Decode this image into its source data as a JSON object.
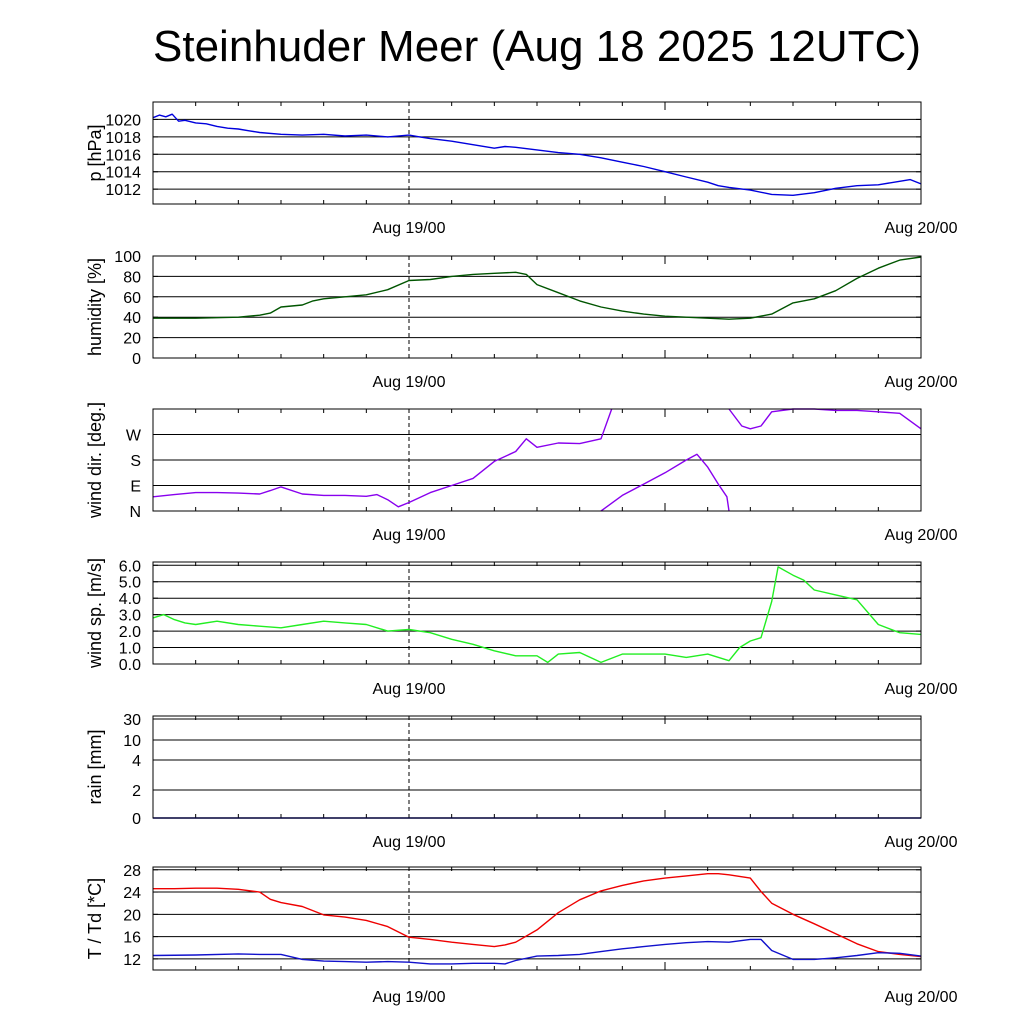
{
  "title": "Steinhuder Meer (Aug 18 2025 12UTC)",
  "time_axis": {
    "labels": [
      "Aug 19/00",
      "Aug 20/00"
    ],
    "label_hours": [
      12,
      36
    ]
  },
  "chart_data": [
    {
      "type": "line",
      "id": "pressure",
      "ylabel": "p [hPa]",
      "ylim": [
        1010.3,
        1022.0
      ],
      "yticks": [
        1012,
        1014,
        1016,
        1018,
        1020
      ],
      "ytick_labels": [
        "1012",
        "1014",
        "1016",
        "1018",
        "1020"
      ],
      "xlim": [
        0,
        36
      ],
      "series": [
        {
          "color": "#0000dd",
          "x": [
            0,
            0.3,
            0.6,
            0.9,
            1.2,
            1.5,
            2,
            2.5,
            3,
            3.5,
            4,
            4.5,
            5,
            6,
            7,
            8,
            9,
            10,
            11,
            12,
            12.5,
            13,
            14,
            15,
            16,
            16.5,
            17,
            18,
            19,
            20,
            21,
            22,
            23,
            24,
            25,
            26,
            26.5,
            27,
            28,
            29,
            30,
            31,
            32,
            33,
            34,
            35,
            35.5,
            36
          ],
          "y": [
            1020.2,
            1020.5,
            1020.3,
            1020.6,
            1019.8,
            1019.9,
            1019.6,
            1019.5,
            1019.2,
            1019.0,
            1018.9,
            1018.7,
            1018.5,
            1018.3,
            1018.2,
            1018.3,
            1018.1,
            1018.2,
            1018.0,
            1018.2,
            1018.0,
            1017.8,
            1017.5,
            1017.1,
            1016.7,
            1016.9,
            1016.8,
            1016.5,
            1016.2,
            1016.0,
            1015.6,
            1015.1,
            1014.6,
            1014.0,
            1013.4,
            1012.8,
            1012.4,
            1012.2,
            1011.9,
            1011.4,
            1011.3,
            1011.6,
            1012.1,
            1012.4,
            1012.5,
            1012.9,
            1013.1,
            1012.6
          ]
        }
      ]
    },
    {
      "type": "line",
      "id": "humidity",
      "ylabel": "humidity [%]",
      "ylim": [
        0,
        100
      ],
      "yticks": [
        0,
        20,
        40,
        60,
        80,
        100
      ],
      "ytick_labels": [
        "0",
        "20",
        "40",
        "60",
        "80",
        "100"
      ],
      "xlim": [
        0,
        36
      ],
      "series": [
        {
          "color": "#005500",
          "x": [
            0,
            2,
            4,
            5,
            5.5,
            6,
            7,
            7.5,
            8,
            9,
            10,
            11,
            12,
            13,
            14,
            15,
            16,
            17,
            17.5,
            18,
            19,
            20,
            21,
            22,
            23,
            24,
            25,
            26,
            27,
            28,
            29,
            30,
            31,
            32,
            33,
            34,
            35,
            36
          ],
          "y": [
            39,
            39,
            40,
            42,
            44,
            50,
            52,
            56,
            58,
            60,
            62,
            67,
            76,
            77,
            80,
            82,
            83,
            84,
            82,
            72,
            64,
            56,
            50,
            46,
            43,
            41,
            40,
            39,
            38,
            39,
            43,
            54,
            58,
            66,
            78,
            88,
            96,
            99
          ]
        }
      ]
    },
    {
      "type": "line",
      "id": "wind_direction",
      "ylabel": "wind dir. [deg.]",
      "ylim": [
        0,
        360
      ],
      "yticks": [
        0,
        90,
        180,
        270
      ],
      "ytick_labels": [
        "N",
        "E",
        "S",
        "W"
      ],
      "xlim": [
        0,
        36
      ],
      "series": [
        {
          "color": "#8800ee",
          "x": [
            0,
            1,
            2,
            3,
            4,
            5,
            5.5,
            6,
            7,
            8,
            9,
            10,
            10.5,
            11,
            11.5,
            12,
            13,
            14,
            15,
            16,
            17,
            17.5,
            18,
            19,
            20,
            21,
            21.5
          ],
          "y": [
            50,
            58,
            65,
            65,
            63,
            60,
            72,
            85,
            60,
            55,
            55,
            52,
            58,
            40,
            15,
            30,
            65,
            90,
            115,
            175,
            210,
            255,
            225,
            240,
            238,
            255,
            360
          ]
        },
        {
          "color": "#8800ee",
          "x": [
            21,
            22,
            23,
            24,
            25,
            25.5,
            26,
            26.5,
            26.9,
            27
          ],
          "y": [
            0,
            55,
            95,
            135,
            180,
            200,
            155,
            95,
            50,
            0
          ]
        },
        {
          "color": "#8800ee",
          "x": [
            27,
            27.6,
            28,
            28.5,
            29,
            30,
            31,
            32,
            33,
            34,
            35,
            36
          ],
          "y": [
            360,
            300,
            290,
            300,
            350,
            360,
            360,
            355,
            355,
            350,
            345,
            290
          ]
        }
      ]
    },
    {
      "type": "line",
      "id": "wind_speed",
      "ylabel": "wind sp. [m/s]",
      "ylim": [
        0,
        6.2
      ],
      "yticks": [
        0,
        1,
        2,
        3,
        4,
        5,
        6
      ],
      "ytick_labels": [
        "0.0",
        "1.0",
        "2.0",
        "3.0",
        "4.0",
        "5.0",
        "6.0"
      ],
      "xlim": [
        0,
        36
      ],
      "series": [
        {
          "color": "#22ee22",
          "x": [
            0,
            0.5,
            1,
            1.5,
            2,
            3,
            4,
            5,
            6,
            7,
            8,
            9,
            10,
            11,
            12,
            13,
            14,
            15,
            16,
            17,
            18,
            18.5,
            19,
            20,
            21,
            22,
            23,
            24,
            25,
            26,
            27,
            27.5,
            28,
            28.5,
            29,
            29.3,
            30,
            30.5,
            31,
            32,
            33,
            34,
            35,
            36
          ],
          "y": [
            2.8,
            3.0,
            2.7,
            2.5,
            2.4,
            2.6,
            2.4,
            2.3,
            2.2,
            2.4,
            2.6,
            2.5,
            2.4,
            2.0,
            2.1,
            1.9,
            1.5,
            1.2,
            0.8,
            0.5,
            0.5,
            0.1,
            0.6,
            0.7,
            0.1,
            0.6,
            0.6,
            0.6,
            0.4,
            0.6,
            0.2,
            1.0,
            1.4,
            1.6,
            3.8,
            5.9,
            5.4,
            5.1,
            4.5,
            4.2,
            3.9,
            2.4,
            1.9,
            1.8
          ]
        }
      ]
    },
    {
      "type": "line",
      "id": "rain",
      "ylabel": "rain [mm]",
      "ylim": [
        0,
        30
      ],
      "yticks": [
        0,
        2,
        4,
        10,
        30
      ],
      "ytick_labels": [
        "0",
        "2",
        "4",
        "10",
        "30"
      ],
      "xlim": [
        0,
        36
      ],
      "series": [
        {
          "color": "#0000aa",
          "x": [
            0,
            36
          ],
          "y": [
            0,
            0
          ]
        }
      ]
    },
    {
      "type": "line",
      "id": "temperature_dewpoint",
      "ylabel": "T / Td [*C]",
      "ylim": [
        10,
        28.5
      ],
      "yticks": [
        12,
        16,
        20,
        24,
        28
      ],
      "ytick_labels": [
        "12",
        "16",
        "20",
        "24",
        "28"
      ],
      "xlim": [
        0,
        36
      ],
      "series": [
        {
          "color": "#ee0000",
          "x": [
            0,
            1,
            2,
            3,
            4,
            5,
            5.5,
            6,
            7,
            8,
            9,
            10,
            11,
            12,
            13,
            14,
            15,
            16,
            16.5,
            17,
            18,
            19,
            20,
            21,
            22,
            23,
            24,
            25,
            26,
            26.5,
            27,
            28,
            28.5,
            29,
            30,
            31,
            32,
            33,
            34,
            35,
            36
          ],
          "y": [
            24.6,
            24.6,
            24.7,
            24.7,
            24.5,
            24.0,
            22.7,
            22.1,
            21.4,
            19.9,
            19.5,
            18.9,
            17.8,
            15.9,
            15.5,
            15.0,
            14.6,
            14.2,
            14.5,
            15.0,
            17.2,
            20.3,
            22.6,
            24.2,
            25.2,
            26.0,
            26.5,
            26.9,
            27.3,
            27.3,
            27.1,
            26.5,
            24.1,
            22.0,
            20.0,
            18.3,
            16.5,
            14.7,
            13.3,
            12.8,
            12.4
          ]
        },
        {
          "color": "#1111cc",
          "x": [
            0,
            2,
            4,
            5,
            6,
            7,
            8,
            9,
            10,
            11,
            12,
            13,
            14,
            15,
            16,
            16.5,
            17,
            18,
            19,
            20,
            21,
            22,
            23,
            24,
            25,
            26,
            27,
            28,
            28.5,
            29,
            30,
            31,
            32,
            33,
            34,
            35,
            36
          ],
          "y": [
            12.6,
            12.7,
            12.9,
            12.8,
            12.8,
            11.9,
            11.6,
            11.5,
            11.4,
            11.5,
            11.4,
            11.1,
            11.1,
            11.2,
            11.2,
            11.1,
            11.7,
            12.5,
            12.6,
            12.8,
            13.3,
            13.8,
            14.2,
            14.6,
            14.9,
            15.1,
            15.0,
            15.5,
            15.5,
            13.5,
            11.9,
            11.9,
            12.2,
            12.6,
            13.1,
            13.0,
            12.5
          ]
        }
      ]
    }
  ]
}
